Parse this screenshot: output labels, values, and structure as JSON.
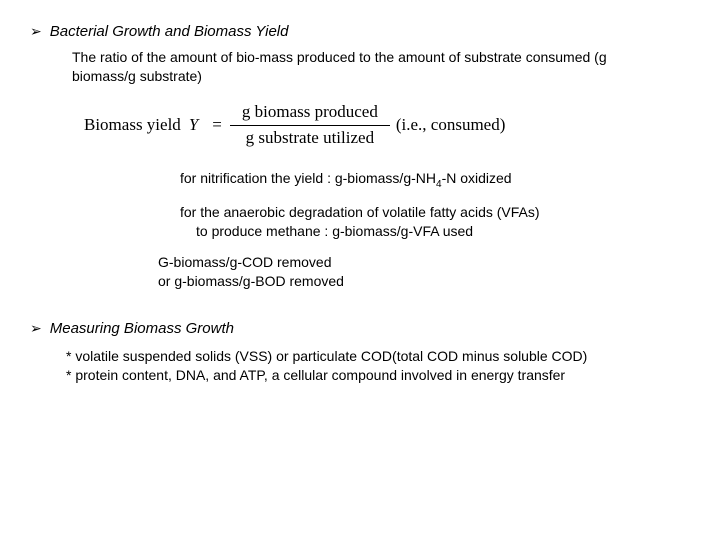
{
  "section1": {
    "bullet": "➢",
    "heading": "Bacterial Growth and Biomass Yield",
    "intro": "The ratio of the amount of bio-mass produced to the amount of substrate consumed (g biomass/g substrate)",
    "equation": {
      "label": "Biomass yield",
      "var": "Y",
      "eq": "=",
      "numerator": "g biomass produced",
      "denominator": "g substrate utilized",
      "suffix": "(i.e., consumed)"
    },
    "note1": {
      "pre": "for nitrification the yield : g-biomass/g-NH",
      "sub": "4",
      "post": "-N oxidized"
    },
    "note2_l1": "for the anaerobic degradation of volatile fatty acids (VFAs)",
    "note2_l2": "to produce methane : g-biomass/g-VFA used",
    "note3_l1": "G-biomass/g-COD removed",
    "note3_l2": "or g-biomass/g-BOD removed"
  },
  "section2": {
    "bullet": "➢",
    "heading": "Measuring Biomass Growth",
    "item1": "* volatile suspended solids (VSS) or particulate COD(total COD minus soluble COD)",
    "item2": "* protein content, DNA, and ATP, a cellular compound involved in energy transfer"
  }
}
